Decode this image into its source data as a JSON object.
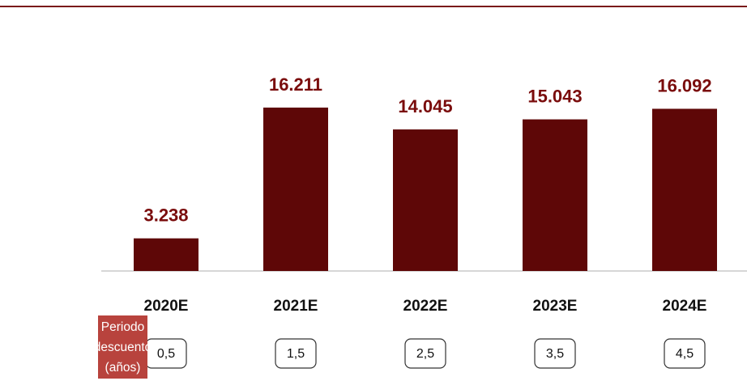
{
  "chart_data": {
    "type": "bar",
    "categories": [
      "2020E",
      "2021E",
      "2022E",
      "2023E",
      "2024E"
    ],
    "values": [
      3238,
      16211,
      14045,
      15043,
      16092
    ],
    "value_labels": [
      "3.238",
      "16.211",
      "14.045",
      "15.043",
      "16.092"
    ],
    "color": "#5e0707",
    "label_color": "#7a0c0c",
    "discount_label": "Periodo descuento (años)",
    "discount_periods": [
      "0,5",
      "1,5",
      "2,5",
      "3,5",
      "4,5"
    ]
  }
}
